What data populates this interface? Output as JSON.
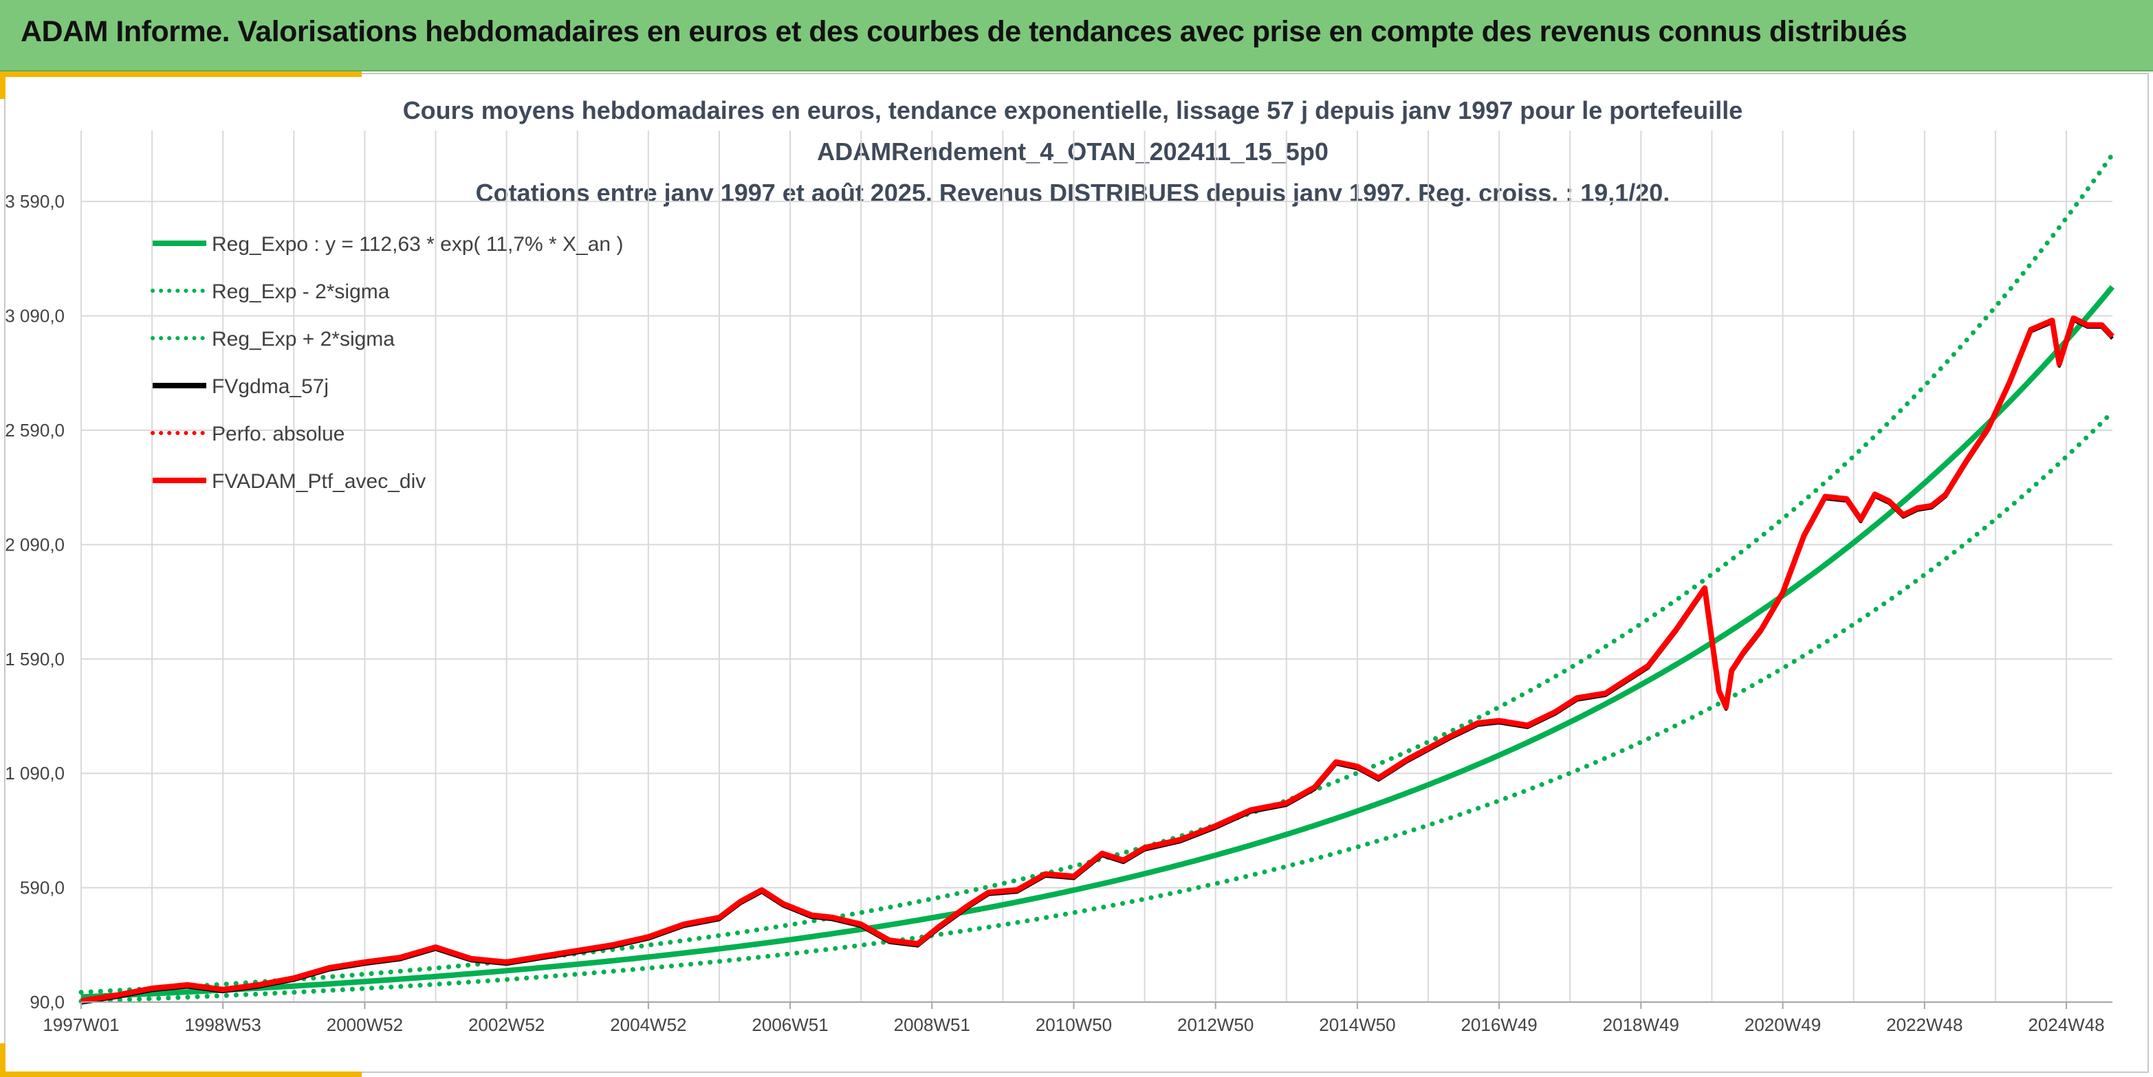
{
  "banner": {
    "title": "ADAM Informe. Valorisations hebdomadaires en euros et des courbes de tendances avec prise en compte des revenus connus distribués"
  },
  "colors": {
    "banner_bg": "#7dc77a",
    "accent": "#f2b600",
    "reg_expo": "#00b050",
    "fvgdma": "#000000",
    "portfolio": "#ff0000",
    "grid": "#d9d9d9"
  },
  "chart_data": {
    "type": "line",
    "title": [
      "Cours moyens hebdomadaires en euros, tendance exponentielle, lissage 57 j depuis janv 1997 pour le portefeuille",
      "ADAMRendement_4_OTAN_202411_15_5p0",
      "Cotations entre janv 1997 et août 2025. Revenus DISTRIBUES depuis janv 1997. Reg. croiss. : 19,1/20."
    ],
    "xlabel": "",
    "ylabel": "",
    "ylim": [
      90,
      3900
    ],
    "y_ticks": [
      90,
      590,
      1090,
      1590,
      2090,
      2590,
      3090,
      3590
    ],
    "y_tick_labels": [
      "90,0",
      "590,0",
      "1 090,0",
      "1 590,0",
      "2 090,0",
      "2 590,0",
      "3 090,0",
      "3 590,0"
    ],
    "x_range_years": [
      1997.0,
      2025.65
    ],
    "x_tick_years": [
      1997.0,
      1999.0,
      2001.0,
      2003.0,
      2005.0,
      2007.0,
      2009.0,
      2011.0,
      2013.0,
      2015.0,
      2017.0,
      2019.0,
      2021.0,
      2023.0,
      2025.0
    ],
    "x_tick_labels": [
      "1997W01",
      "1998W53",
      "2000W52",
      "2002W52",
      "2004W52",
      "2006W51",
      "2008W51",
      "2010W50",
      "2012W50",
      "2014W50",
      "2016W49",
      "2018W49",
      "2020W49",
      "2022W48",
      "2024W48"
    ],
    "grid": true,
    "legend_position": "top-left",
    "legend": [
      {
        "label": "Reg_Expo : y = 112,63 * exp( 11,7% *  X_an )",
        "color": "#00b050",
        "style": "solid"
      },
      {
        "label": "Reg_Exp - 2*sigma",
        "color": "#00b050",
        "style": "dotted"
      },
      {
        "label": "Reg_Exp + 2*sigma",
        "color": "#00b050",
        "style": "dotted"
      },
      {
        "label": "FVgdma_57j",
        "color": "#000000",
        "style": "solid"
      },
      {
        "label": "Perfo. absolue",
        "color": "#ff0000",
        "style": "dotted"
      },
      {
        "label": "FVADAM_Ptf_avec_div",
        "color": "#ff0000",
        "style": "solid"
      }
    ],
    "regression": {
      "a": 112.63,
      "rate": 0.117,
      "lower_factor": 0.83,
      "upper_factor": 1.18
    },
    "series": [
      {
        "name": "FVADAM_Ptf_avec_div",
        "x": [
          1997.0,
          1997.5,
          1998.0,
          1998.5,
          1999.0,
          1999.5,
          2000.0,
          2000.5,
          2001.0,
          2001.5,
          2002.0,
          2002.5,
          2003.0,
          2003.5,
          2004.0,
          2004.5,
          2005.0,
          2005.5,
          2006.0,
          2006.3,
          2006.6,
          2006.9,
          2007.3,
          2007.6,
          2008.0,
          2008.4,
          2008.8,
          2009.1,
          2009.5,
          2009.8,
          2010.2,
          2010.6,
          2011.0,
          2011.4,
          2011.7,
          2012.0,
          2012.5,
          2013.0,
          2013.5,
          2014.0,
          2014.4,
          2014.7,
          2015.0,
          2015.3,
          2015.7,
          2016.0,
          2016.3,
          2016.7,
          2017.0,
          2017.4,
          2017.8,
          2018.1,
          2018.5,
          2018.8,
          2019.1,
          2019.5,
          2019.9,
          2020.1,
          2020.2,
          2020.28,
          2020.45,
          2020.7,
          2021.0,
          2021.3,
          2021.6,
          2021.9,
          2022.1,
          2022.3,
          2022.5,
          2022.7,
          2022.9,
          2023.1,
          2023.3,
          2023.6,
          2023.9,
          2024.2,
          2024.5,
          2024.8,
          2024.9,
          2025.1,
          2025.3,
          2025.5,
          2025.65
        ],
        "y": [
          95,
          120,
          150,
          165,
          145,
          165,
          195,
          240,
          265,
          285,
          330,
          280,
          265,
          290,
          315,
          340,
          375,
          430,
          460,
          530,
          580,
          520,
          470,
          460,
          430,
          360,
          345,
          420,
          510,
          570,
          580,
          650,
          640,
          740,
          710,
          765,
          800,
          860,
          930,
          960,
          1030,
          1140,
          1120,
          1070,
          1150,
          1200,
          1250,
          1310,
          1320,
          1300,
          1360,
          1420,
          1440,
          1500,
          1560,
          1720,
          1900,
          1450,
          1380,
          1540,
          1620,
          1720,
          1880,
          2130,
          2300,
          2290,
          2200,
          2310,
          2280,
          2220,
          2250,
          2260,
          2310,
          2460,
          2600,
          2800,
          3030,
          3070,
          2880,
          3080,
          3050,
          3050,
          3000
        ]
      }
    ]
  }
}
